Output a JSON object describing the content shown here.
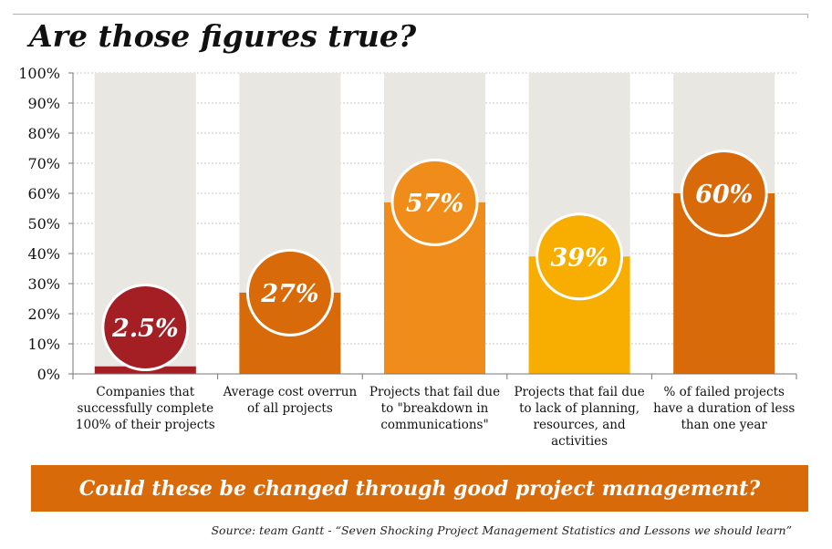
{
  "title": "Are those figures true?",
  "banner": "Could these be changed through good project management?",
  "source": "Source: team Gantt - “Seven Shocking Project Management Statistics and Lessons we should learn”",
  "chart_data": {
    "type": "bar",
    "title": "Are those figures true?",
    "xlabel": "",
    "ylabel": "",
    "ylim": [
      0,
      100
    ],
    "yticks": [
      "0%",
      "10%",
      "20%",
      "30%",
      "40%",
      "50%",
      "60%",
      "70%",
      "80%",
      "90%",
      "100%"
    ],
    "grid": true,
    "legend": "none",
    "track_color": "#e9e7e2",
    "categories": [
      [
        "Companies that",
        "successfully complete",
        "100% of their projects"
      ],
      [
        "Average cost overrun",
        "of all projects"
      ],
      [
        "Projects that fail due",
        "to \"breakdown in",
        "communications\""
      ],
      [
        "Projects that fail due",
        "to lack of planning,",
        "resources, and",
        "activities"
      ],
      [
        "% of failed projects",
        "have a duration of less",
        "than one year"
      ]
    ],
    "values": [
      2.5,
      27,
      57,
      39,
      60
    ],
    "labels": [
      "2.5%",
      "27%",
      "57%",
      "39%",
      "60%"
    ],
    "colors": [
      "#a31f24",
      "#d86a09",
      "#f08d1a",
      "#f8ae00",
      "#d86a09"
    ]
  }
}
